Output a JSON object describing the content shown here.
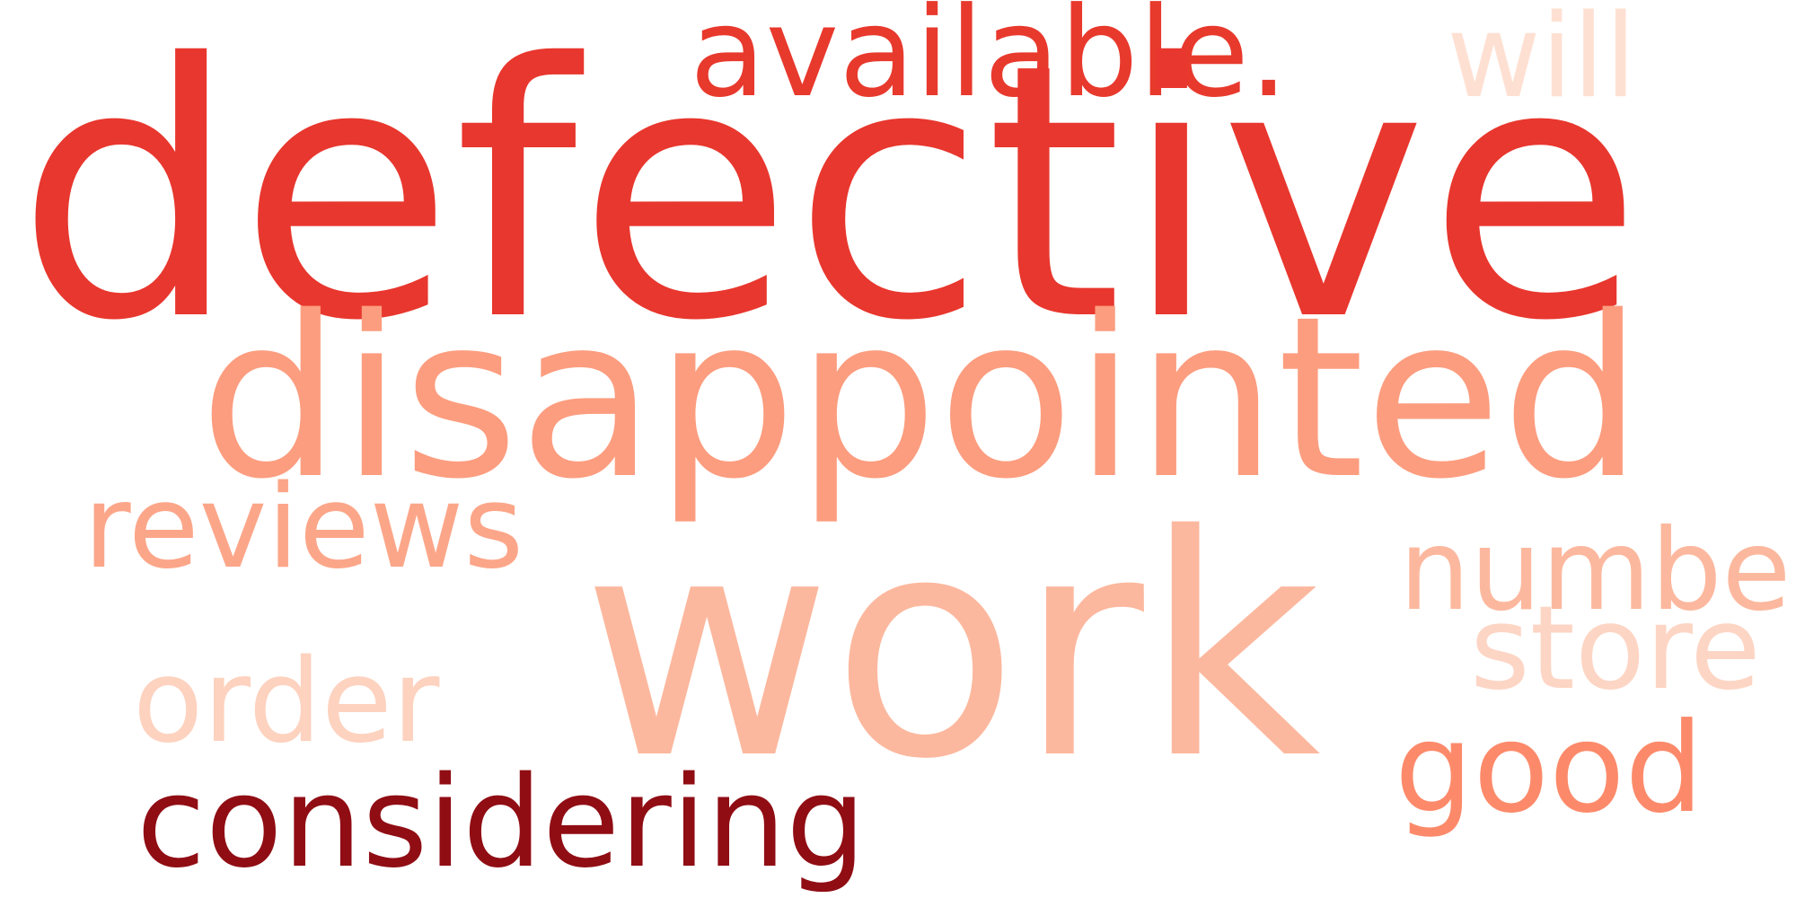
{
  "words": [
    {
      "id": "defective",
      "text": "defective",
      "color": "#e8372e"
    },
    {
      "id": "work",
      "text": "work",
      "color": "#fcb89e"
    },
    {
      "id": "disappointed",
      "text": "disappointed",
      "color": "#fc9d7f"
    },
    {
      "id": "available",
      "text": "available.",
      "color": "#e8392d"
    },
    {
      "id": "considering",
      "text": "considering",
      "color": "#900d14"
    },
    {
      "id": "reviews",
      "text": "reviews",
      "color": "#fca689"
    },
    {
      "id": "number",
      "text": "number",
      "color": "#fcb89e"
    },
    {
      "id": "store",
      "text": "store",
      "color": "#fdd5c4"
    },
    {
      "id": "order",
      "text": "order",
      "color": "#fdd2bf"
    },
    {
      "id": "good",
      "text": "good",
      "color": "#fc8a6a"
    },
    {
      "id": "will",
      "text": "will",
      "color": "#fee0d2"
    }
  ]
}
